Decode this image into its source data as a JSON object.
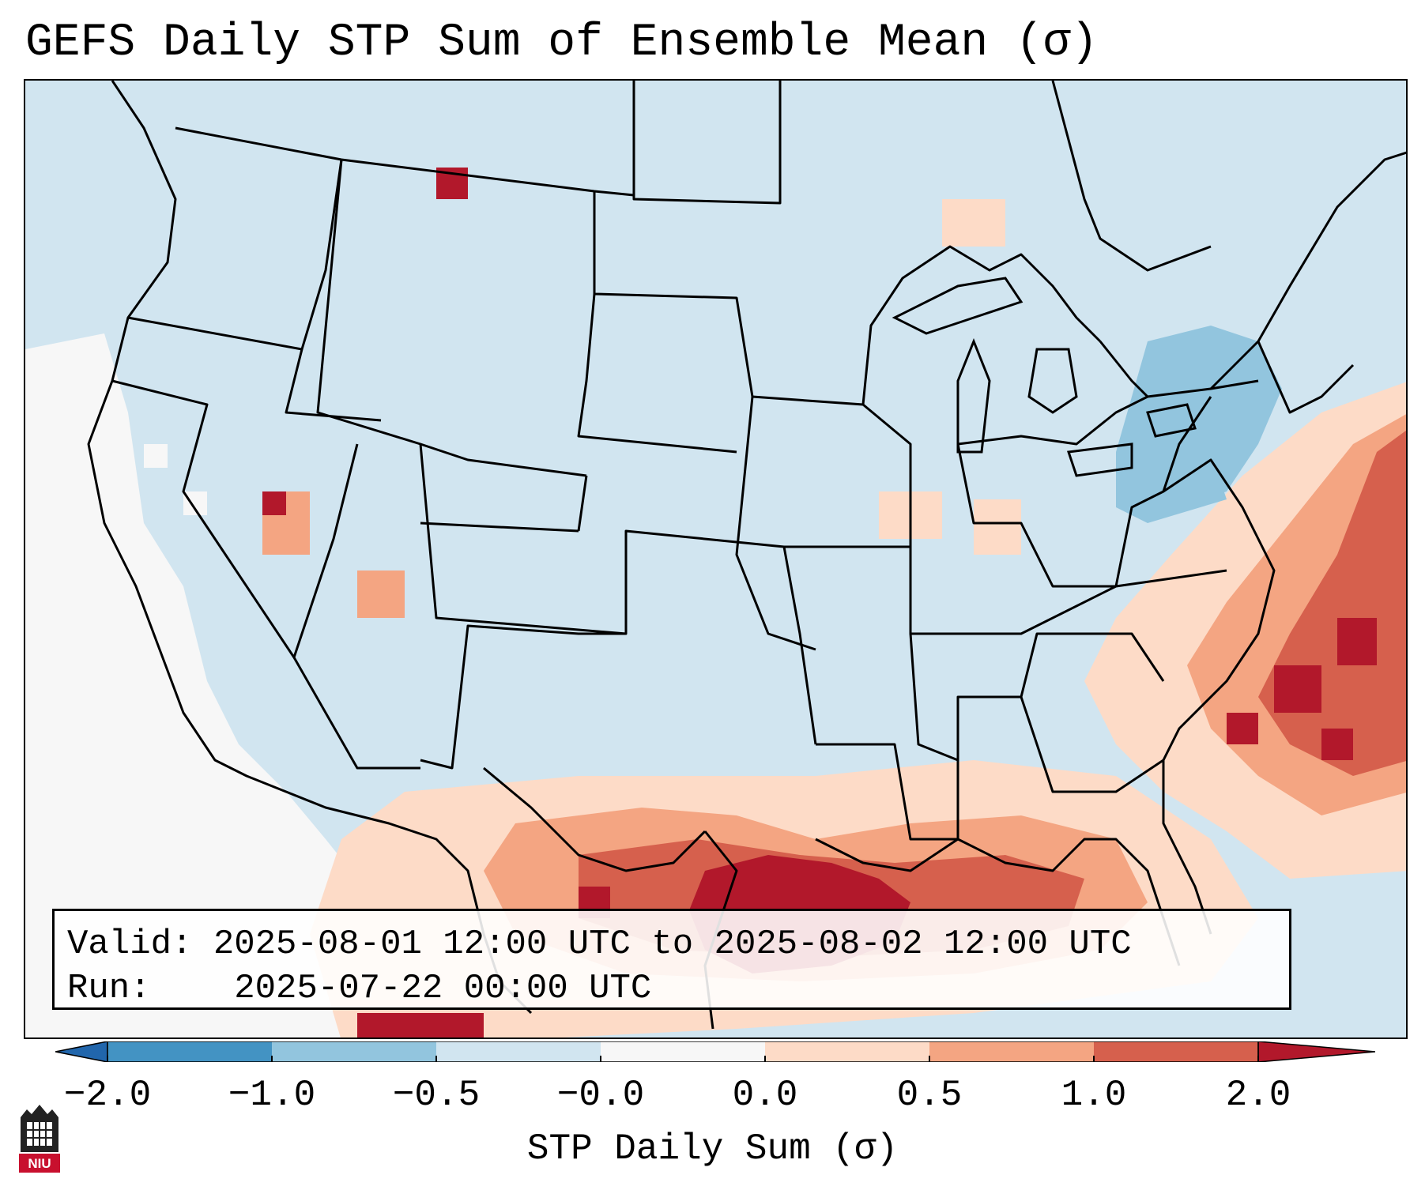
{
  "title": "GEFS Daily STP Sum of Ensemble Mean (σ)",
  "info": {
    "valid_label": "Valid:",
    "valid_value": "2025-08-01 12:00 UTC to 2025-08-02 12:00 UTC",
    "run_label": "Run:",
    "run_value": "2025-07-22 00:00 UTC"
  },
  "colorbar": {
    "label": "STP Daily Sum (σ)",
    "ticks": [
      "−2.0",
      "−1.0",
      "−0.5",
      "−0.0",
      "0.0",
      "0.5",
      "1.0",
      "2.0"
    ],
    "bins": [
      {
        "range": "< -2.0",
        "color": "#2166ac"
      },
      {
        "range": "-2.0 to -1.0",
        "color": "#4393c3"
      },
      {
        "range": "-1.0 to -0.5",
        "color": "#92c5de"
      },
      {
        "range": "-0.5 to -0.0",
        "color": "#d1e5f0"
      },
      {
        "range": "-0.0 to 0.0",
        "color": "#f7f7f7"
      },
      {
        "range": "0.0 to 0.5",
        "color": "#fddbc7"
      },
      {
        "range": "0.5 to 1.0",
        "color": "#f4a582"
      },
      {
        "range": "1.0 to 2.0",
        "color": "#d6604d"
      },
      {
        "range": "> 2.0",
        "color": "#b2182b"
      }
    ]
  },
  "map": {
    "background_color": "#d1e5f0",
    "regions": [
      {
        "name": "Gulf of Mexico / Texas coast maximum",
        "class": "> 2.0"
      },
      {
        "name": "Western Atlantic offshore band",
        "class": "1.0 to 2.0"
      },
      {
        "name": "Northeast US",
        "class": "-1.0 to -0.5"
      },
      {
        "name": "Pacific offshore",
        "class": "-0.0 to 0.0"
      }
    ]
  },
  "logo": {
    "text": "NIU"
  }
}
